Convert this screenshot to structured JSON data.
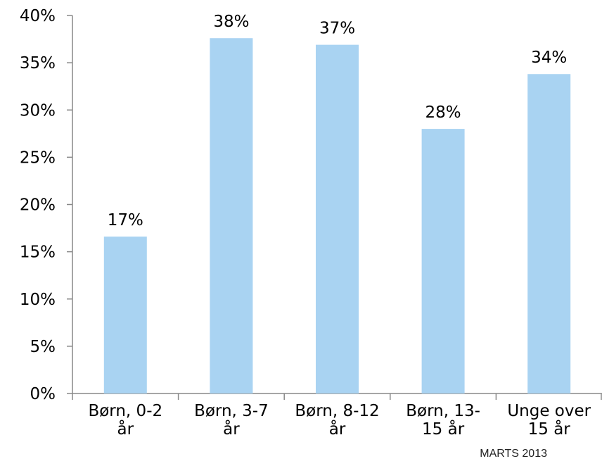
{
  "chart_data": {
    "type": "bar",
    "categories": [
      "Børn, 0-2 år",
      "Børn, 3-7 år",
      "Børn, 8-12 år",
      "Børn, 13-15 år",
      "Unge over 15 år"
    ],
    "category_lines": [
      [
        "Børn, 0-2",
        "år"
      ],
      [
        "Børn, 3-7",
        "år"
      ],
      [
        "Børn, 8-12",
        "år"
      ],
      [
        "Børn, 13-",
        "15 år"
      ],
      [
        "Unge over",
        "15 år"
      ]
    ],
    "values": [
      16.6,
      37.6,
      36.9,
      28.0,
      33.8
    ],
    "data_labels": [
      "17%",
      "38%",
      "37%",
      "28%",
      "34%"
    ],
    "ylim": [
      0,
      40
    ],
    "yticks": [
      0,
      5,
      10,
      15,
      20,
      25,
      30,
      35,
      40
    ],
    "ytick_labels": [
      "0%",
      "5%",
      "10%",
      "15%",
      "20%",
      "25%",
      "30%",
      "35%",
      "40%"
    ],
    "bar_color": "#a9d3f2",
    "axis_color": "#888888",
    "grid": false,
    "title": "",
    "xlabel": "",
    "ylabel": ""
  },
  "footer": "MARTS 2013"
}
